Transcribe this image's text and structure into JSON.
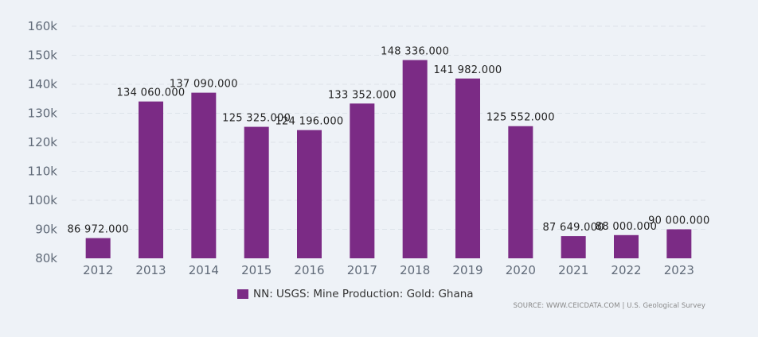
{
  "chart_data": {
    "type": "bar",
    "title": "",
    "xlabel": "",
    "ylabel": "",
    "categories": [
      "2012",
      "2013",
      "2014",
      "2015",
      "2016",
      "2017",
      "2018",
      "2019",
      "2020",
      "2021",
      "2022",
      "2023"
    ],
    "series": [
      {
        "name": "NN: USGS: Mine Production: Gold: Ghana",
        "color": "#7b2b85",
        "values": [
          86972,
          134060,
          137090,
          125325,
          124196,
          133352,
          148336,
          141982,
          125552,
          87649,
          88000,
          90000
        ],
        "labels": [
          "86 972.000",
          "134 060.000",
          "137 090.000",
          "125 325.000",
          "124 196.000",
          "133 352.000",
          "148 336.000",
          "141 982.000",
          "125 552.000",
          "87 649.000",
          "88 000.000",
          "90 000.000"
        ]
      }
    ],
    "ylim": [
      80000,
      160000
    ],
    "yticks": [
      80000,
      90000,
      100000,
      110000,
      120000,
      130000,
      140000,
      150000,
      160000
    ],
    "ytick_labels": [
      "80k",
      "90k",
      "100k",
      "110k",
      "120k",
      "130k",
      "140k",
      "150k",
      "160k"
    ],
    "grid": true,
    "legend_position": "bottom-center"
  },
  "legend": {
    "label": "NN: USGS: Mine Production: Gold: Ghana",
    "color": "#7b2b85"
  },
  "source": "SOURCE: WWW.CEICDATA.COM | U.S. Geological Survey"
}
